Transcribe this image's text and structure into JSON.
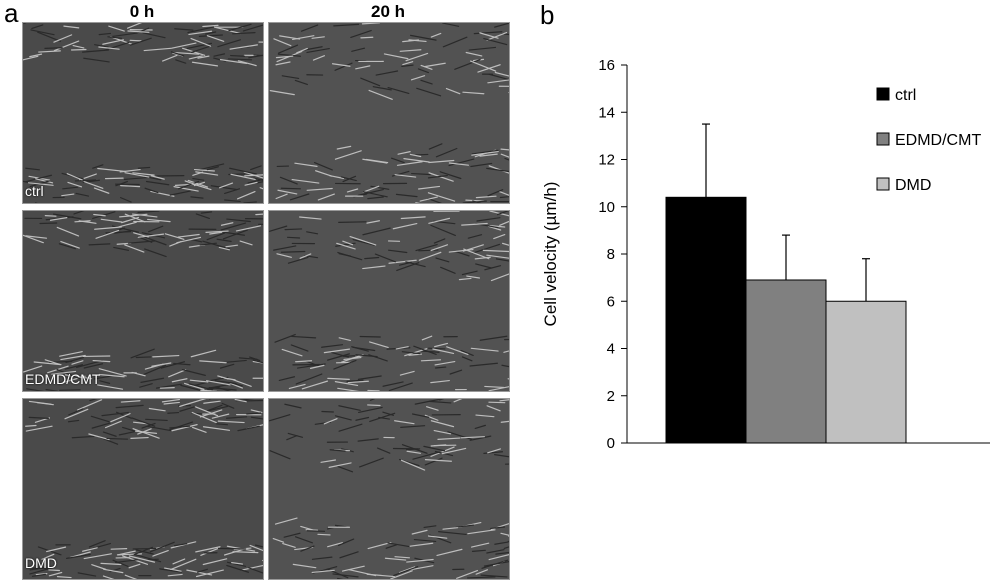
{
  "panel_a": {
    "letter": "a",
    "columns": [
      "0 h",
      "20 h"
    ],
    "rows": [
      "ctrl",
      "EDMD/CMT",
      "DMD"
    ]
  },
  "panel_b": {
    "letter": "b"
  },
  "chart_data": {
    "type": "bar",
    "categories": [
      "ctrl",
      "EDMD/CMT",
      "DMD"
    ],
    "values": [
      10.4,
      6.9,
      6.0
    ],
    "errors": [
      3.1,
      1.9,
      1.8
    ],
    "colors": [
      "#000000",
      "#808080",
      "#c0c0c0"
    ],
    "xlabel": "",
    "ylabel": "Cell velocity (µm/h)",
    "ylim": [
      0,
      16
    ],
    "yticks": [
      0,
      2,
      4,
      6,
      8,
      10,
      12,
      14,
      16
    ],
    "legend": [
      "ctrl",
      "EDMD/CMT",
      "DMD"
    ],
    "legend_position": "top-right",
    "grid": false
  }
}
